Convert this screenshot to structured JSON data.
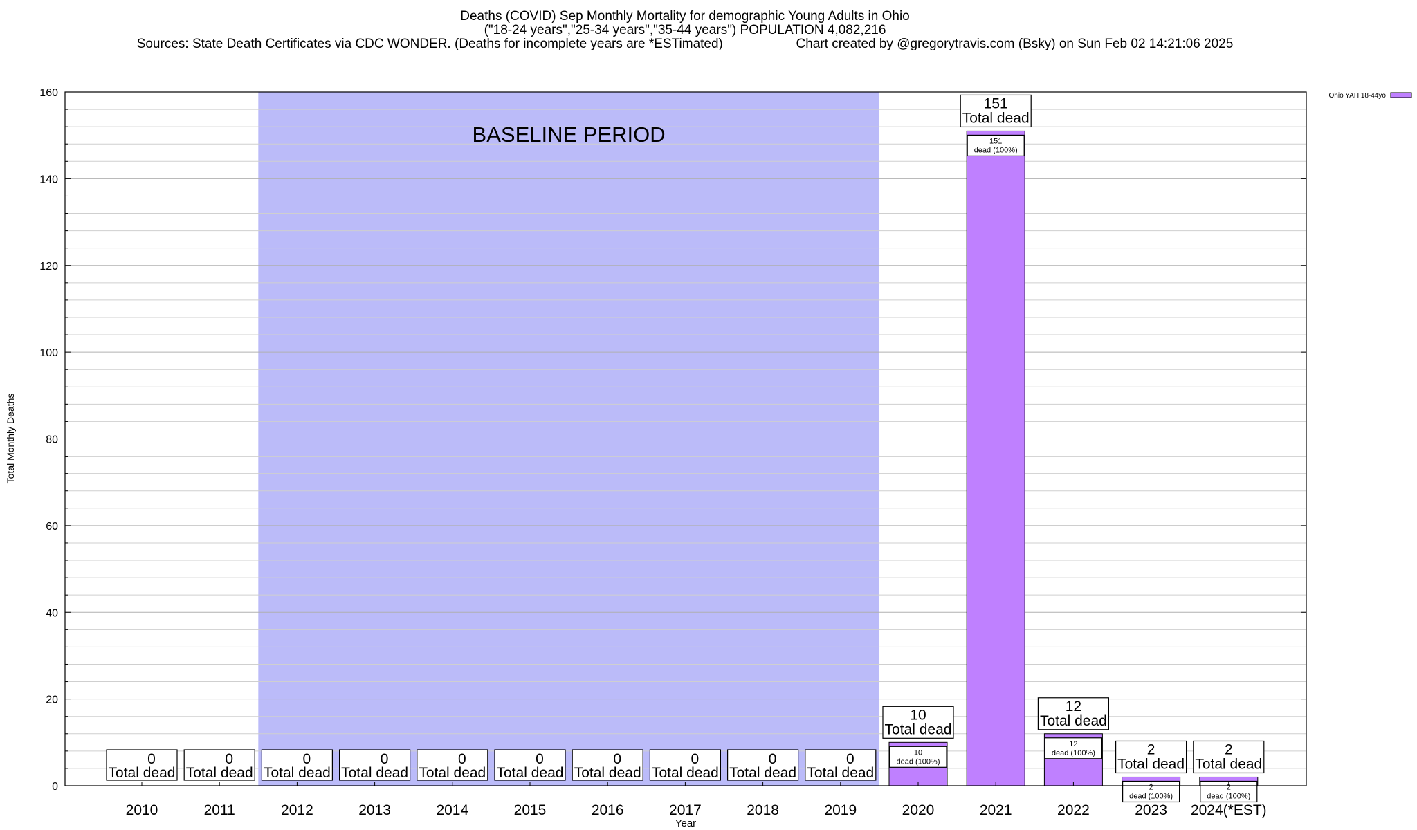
{
  "header": {
    "title": "Deaths (COVID) Sep Monthly Mortality for demographic Young Adults in Ohio",
    "subtitle": "(\"18-24 years\",\"25-34 years\",\"35-44 years\") POPULATION 4,082,216",
    "sources": "Sources: State Death Certificates via CDC WONDER. (Deaths for incomplete years are *ESTimated)",
    "credit": "Chart created by @gregorytravis.com (Bsky) on Sun Feb 02 14:21:06 2025"
  },
  "chart_data": {
    "type": "bar",
    "title": "Deaths (COVID) Sep Monthly Mortality for demographic Young Adults in Ohio",
    "xlabel": "Year",
    "ylabel": "Total Monthly Deaths",
    "ylim": [
      0,
      160
    ],
    "yticks": [
      0,
      20,
      40,
      60,
      80,
      100,
      120,
      140,
      160
    ],
    "grid": true,
    "legend_placement": "top-right",
    "categories": [
      "2010",
      "2011",
      "2012",
      "2013",
      "2014",
      "2015",
      "2016",
      "2017",
      "2018",
      "2019",
      "2020",
      "2021",
      "2022",
      "2023",
      "2024(*EST)"
    ],
    "series": [
      {
        "name": "Ohio YAH 18-44yo",
        "color": "#bf80ff",
        "values": [
          0,
          0,
          0,
          0,
          0,
          0,
          0,
          0,
          0,
          0,
          10,
          151,
          12,
          2,
          2
        ]
      }
    ],
    "total_label": "Total dead",
    "pct_label": "dead (100%)",
    "baseline": {
      "label": "BASELINE PERIOD",
      "start": "2012",
      "end": "2019",
      "color": "#bbbbf9"
    }
  }
}
